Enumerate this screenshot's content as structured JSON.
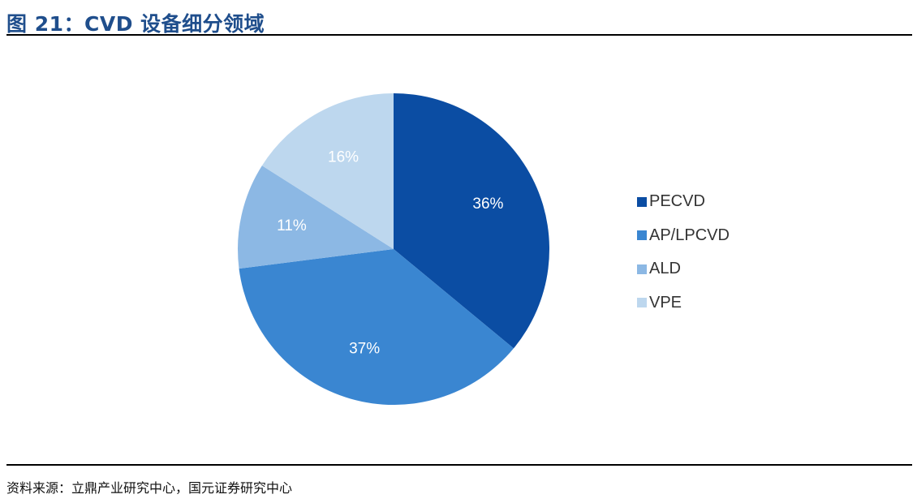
{
  "figure": {
    "title": "图 21：CVD 设备细分领域",
    "source": "资料来源：立鼎产业研究中心，国元证券研究中心"
  },
  "colors": {
    "title": "#1f4e8c",
    "rules": "#000000"
  },
  "chart_data": {
    "type": "pie",
    "title": "",
    "legend_position": "right",
    "slices": [
      {
        "label": "PECVD",
        "value": 36,
        "display": "36%",
        "color": "#0b4da3",
        "label_color": "#ffffff"
      },
      {
        "label": "AP/LPCVD",
        "value": 37,
        "display": "37%",
        "color": "#3a86d1",
        "label_color": "#ffffff"
      },
      {
        "label": "ALD",
        "value": 11,
        "display": "11%",
        "color": "#8cb8e4",
        "label_color": "#ffffff"
      },
      {
        "label": "VPE",
        "value": 16,
        "display": "16%",
        "color": "#bdd7ee",
        "label_color": "#ffffff"
      }
    ]
  }
}
